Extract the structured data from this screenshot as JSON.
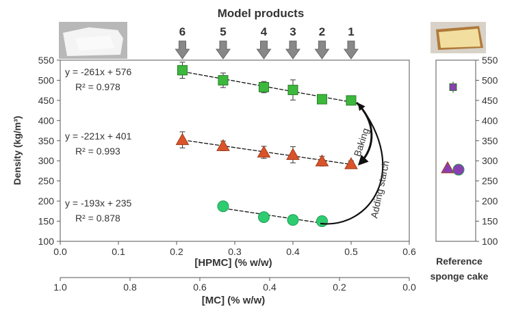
{
  "chart_data": [
    {
      "type": "scatter",
      "title": "Model products",
      "xlabel": "[HPMC] (% w/w)",
      "ylabel": "Density (kg/m³)",
      "xlim": [
        0.0,
        0.6
      ],
      "ylim": [
        100,
        550
      ],
      "x_ticks": [
        "0.0",
        "0.1",
        "0.2",
        "0.3",
        "0.4",
        "0.5",
        "0.6"
      ],
      "y_ticks": [
        "100",
        "150",
        "200",
        "250",
        "300",
        "350",
        "400",
        "450",
        "500",
        "550"
      ],
      "secondary_x": {
        "label": "[MC] (% w/w)",
        "ticks": [
          "1.0",
          "0.8",
          "0.6",
          "0.4",
          "0.2",
          "0.0"
        ],
        "range": [
          1.0,
          0.0
        ]
      },
      "product_markers": [
        {
          "label": "6",
          "x": 0.21
        },
        {
          "label": "5",
          "x": 0.28
        },
        {
          "label": "4",
          "x": 0.35
        },
        {
          "label": "3",
          "x": 0.4
        },
        {
          "label": "2",
          "x": 0.45
        },
        {
          "label": "1",
          "x": 0.5
        }
      ],
      "series": [
        {
          "marker": "square",
          "color": "#3cb83c",
          "x": [
            0.21,
            0.28,
            0.35,
            0.4,
            0.45,
            0.5
          ],
          "y": [
            525,
            500,
            483,
            476,
            453,
            450
          ],
          "err": [
            20,
            18,
            14,
            25,
            5,
            5
          ],
          "equation": "y = -261x + 576",
          "r2": "R² = 0.978"
        },
        {
          "marker": "triangle",
          "color": "#d9542a",
          "x": [
            0.21,
            0.28,
            0.35,
            0.4,
            0.45,
            0.5
          ],
          "y": [
            352,
            337,
            321,
            315,
            299,
            292
          ],
          "err": [
            20,
            12,
            15,
            20,
            12,
            8
          ],
          "equation": "y = -221x + 401",
          "r2": "R² = 0.993"
        },
        {
          "marker": "circle",
          "color": "#2ecc71",
          "x": [
            0.28,
            0.35,
            0.4,
            0.45
          ],
          "y": [
            187,
            160,
            153,
            150
          ],
          "err": [],
          "equation": "y = -193x + 235",
          "r2": "R² = 0.878"
        }
      ],
      "annotations": [
        "Baking",
        "Adding starch"
      ]
    },
    {
      "type": "scatter",
      "xlabel": "Reference sponge cake",
      "ylim": [
        100,
        550
      ],
      "y_ticks": [
        "100",
        "150",
        "200",
        "250",
        "300",
        "350",
        "400",
        "450",
        "500",
        "550"
      ],
      "points": [
        {
          "marker": "square",
          "color": "#8a3fb0",
          "y": 483
        },
        {
          "marker": "triangle",
          "color": "#8a3fb0",
          "y": 282
        },
        {
          "marker": "circle",
          "color": "#8a3fb0",
          "y": 278
        }
      ]
    }
  ]
}
